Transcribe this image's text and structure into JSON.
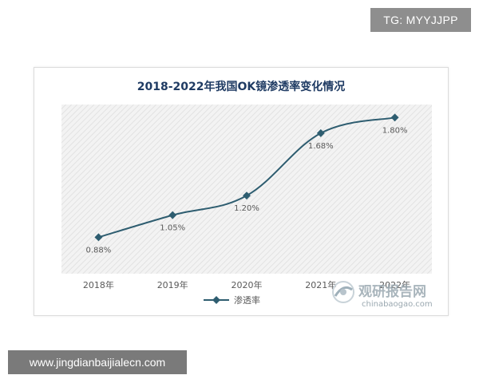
{
  "corner_badge": {
    "text": "TG: MYYJJPP"
  },
  "footer_badge": {
    "text": "www.jingdianbaijialecn.com"
  },
  "watermark": {
    "cn_text": "观研报告网",
    "en_text": "chinabaogao.com"
  },
  "colors": {
    "line": "#2e5d70",
    "title": "#1f3b63",
    "label": "#595959",
    "plot_bg": "#f3f3f3",
    "hatch": "#e2e2e2"
  },
  "chart_data": {
    "type": "line",
    "title": "2018-2022年我国OK镜渗透率变化情况",
    "categories": [
      "2018年",
      "2019年",
      "2020年",
      "2021年",
      "2022年"
    ],
    "series": [
      {
        "name": "渗透率",
        "values": [
          0.88,
          1.05,
          1.2,
          1.68,
          1.8
        ],
        "labels": [
          "0.88%",
          "1.05%",
          "1.20%",
          "1.68%",
          "1.80%"
        ]
      }
    ],
    "ylim": [
      0.6,
      1.9
    ],
    "grid": false,
    "legend": "bottom"
  }
}
